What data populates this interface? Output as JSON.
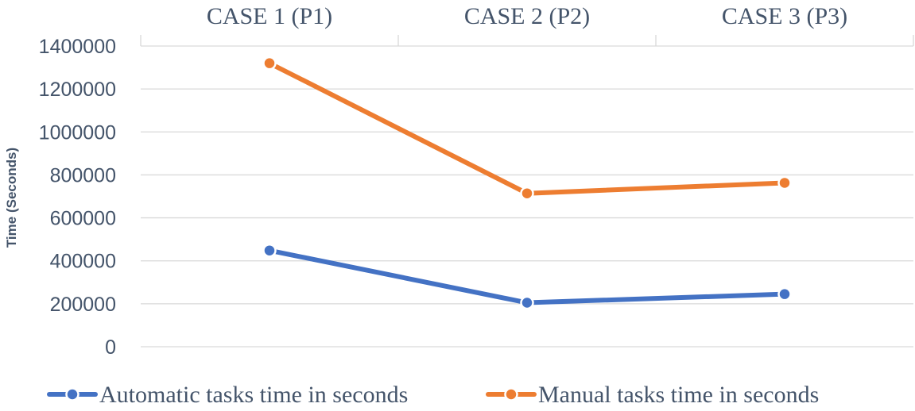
{
  "chart_data": {
    "type": "line",
    "categories": [
      "CASE 1 (P1)",
      "CASE 2 (P2)",
      "CASE 3 (P3)"
    ],
    "category_axis_position": "top",
    "ylabel": "Time (Seconds)",
    "xlabel": "",
    "ylim": [
      0,
      1400000
    ],
    "y_ticks": [
      0,
      200000,
      400000,
      600000,
      800000,
      1000000,
      1200000,
      1400000
    ],
    "grid": true,
    "legend_position": "bottom",
    "series": [
      {
        "name": "Automatic tasks time in seconds",
        "color": "#4472c4",
        "values": [
          448000,
          205000,
          245000
        ]
      },
      {
        "name": "Manual tasks time in seconds",
        "color": "#ed7d31",
        "values": [
          1320000,
          714000,
          763000
        ]
      }
    ]
  }
}
